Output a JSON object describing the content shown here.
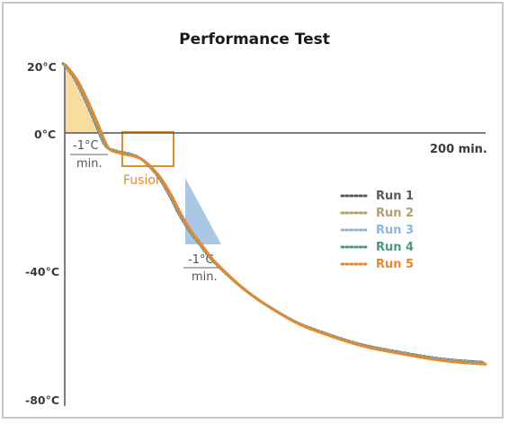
{
  "chart_data": {
    "type": "line",
    "title": "Performance Test",
    "y_ticks": [
      "20°C",
      "0°C",
      "-40°C",
      "-80°C"
    ],
    "x_axis_label": "200 min.",
    "ylim": [
      -80,
      20
    ],
    "xlim": [
      0,
      200
    ],
    "legend_position": "right",
    "series": [
      {
        "name": "Run 1",
        "color": "#5a5a5a"
      },
      {
        "name": "Run 2",
        "color": "#b3a070"
      },
      {
        "name": "Run 3",
        "color": "#8db8dd"
      },
      {
        "name": "Run 4",
        "color": "#4e9a80"
      },
      {
        "name": "Run 5",
        "color": "#e8892c"
      }
    ],
    "x": [
      0,
      5,
      10,
      15,
      20,
      25,
      28,
      32,
      36,
      40,
      45,
      50,
      55,
      60,
      65,
      70,
      80,
      90,
      100,
      110,
      120,
      140,
      160,
      180,
      200
    ],
    "y": [
      20,
      16,
      10,
      3,
      -4,
      -5.5,
      -6,
      -6.5,
      -7.5,
      -9.5,
      -13,
      -18,
      -24,
      -29,
      -33,
      -37,
      -43,
      -48,
      -52,
      -55.5,
      -58,
      -62,
      -64.5,
      -66.5,
      -67.5
    ],
    "annotations": {
      "rate_top": "-1°C",
      "rate_bottom": "min.",
      "fusion": "Fusion"
    },
    "colors": {
      "cooling_triangle_1": "#f8dd9e",
      "cooling_triangle_2": "#a9c8e6",
      "fusion_box": "#e38a2c",
      "axis": "#555555"
    }
  }
}
